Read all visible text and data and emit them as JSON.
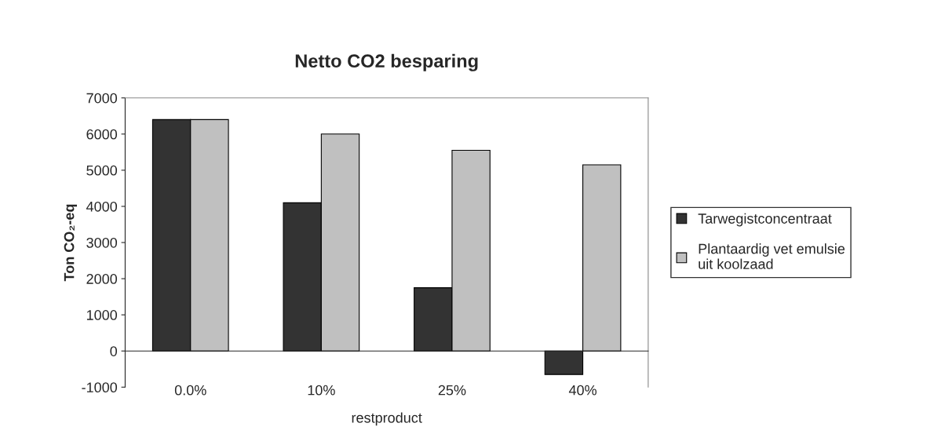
{
  "chart_data": {
    "type": "bar",
    "title": "Netto CO2 besparing",
    "xlabel": "restproduct",
    "ylabel": "Ton CO₂-eq",
    "categories": [
      "0.0%",
      "10%",
      "25%",
      "40%"
    ],
    "series": [
      {
        "name": "Tarwegistconcentraat",
        "color": "#333333",
        "values": [
          6400,
          4100,
          1750,
          -650
        ]
      },
      {
        "name": "Plantaardig vet emulsie uit koolzaad",
        "color": "#c0c0c0",
        "values": [
          6400,
          6000,
          5550,
          5150
        ]
      }
    ],
    "ylim": [
      -1000,
      7000
    ],
    "yticks": [
      -1000,
      0,
      1000,
      2000,
      3000,
      4000,
      5000,
      6000,
      7000
    ],
    "grid": false,
    "legend": "right"
  }
}
